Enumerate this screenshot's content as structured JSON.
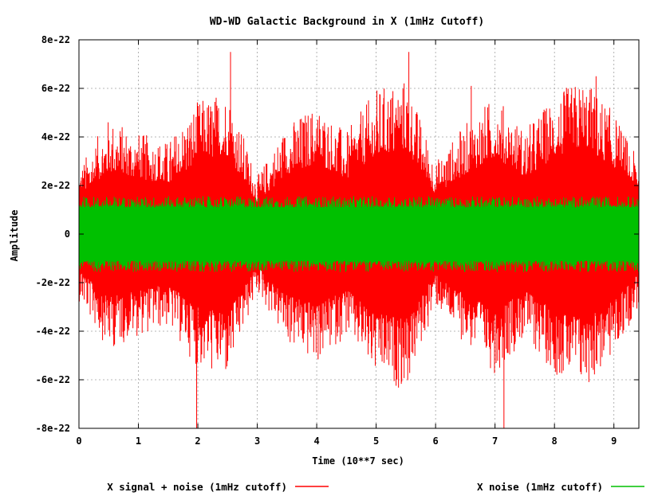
{
  "chart_data": {
    "type": "line",
    "title": "WD-WD Galactic Background in X (1mHz Cutoff)",
    "xlabel": "Time (10**7 sec)",
    "ylabel": "Amplitude",
    "xlim": [
      0,
      9.42
    ],
    "ylim": [
      -8e-22,
      8e-22
    ],
    "x_ticks": [
      0,
      1,
      2,
      3,
      4,
      5,
      6,
      7,
      8,
      9
    ],
    "x_tick_labels": [
      "0",
      "1",
      "2",
      "3",
      "4",
      "5",
      "6",
      "7",
      "8",
      "9"
    ],
    "y_ticks": [
      -8e-22,
      -6e-22,
      -4e-22,
      -2e-22,
      0,
      2e-22,
      4e-22,
      6e-22,
      8e-22
    ],
    "y_tick_labels": [
      "-8e-22",
      "-6e-22",
      "-4e-22",
      "-2e-22",
      "0",
      "2e-22",
      "4e-22",
      "6e-22",
      "8e-22"
    ],
    "grid": true,
    "legend_position": "bottom",
    "series": [
      {
        "name": "X signal + noise (1mHz cutoff)",
        "color": "#ff0000",
        "envelope_time": [
          0,
          0.5,
          1.0,
          1.5,
          2.0,
          2.5,
          3.0,
          3.5,
          4.0,
          4.5,
          5.0,
          5.5,
          6.0,
          6.5,
          7.0,
          7.5,
          8.0,
          8.5,
          9.0,
          9.42
        ],
        "envelope_amplitude": [
          2.3e-22,
          4e-22,
          3.5e-22,
          3.2e-22,
          4.6e-22,
          5e-22,
          2e-22,
          3.8e-22,
          4.5e-22,
          3.5e-22,
          5e-22,
          5.4e-22,
          2.5e-22,
          3.8e-22,
          4.8e-22,
          3.6e-22,
          4.8e-22,
          5.4e-22,
          4.2e-22,
          2.5e-22
        ],
        "peak_max": [
          [
            1.98,
            -8e-22
          ],
          [
            2.55,
            7.5e-22
          ],
          [
            5.55,
            7.5e-22
          ],
          [
            7.15,
            -8e-22
          ],
          [
            6.6,
            6.1e-22
          ],
          [
            8.7,
            6.5e-22
          ]
        ]
      },
      {
        "name": "X noise (1mHz cutoff)",
        "color": "#00c000",
        "amplitude_typical": 1.3e-22,
        "amplitude_max": 2e-22
      }
    ]
  }
}
